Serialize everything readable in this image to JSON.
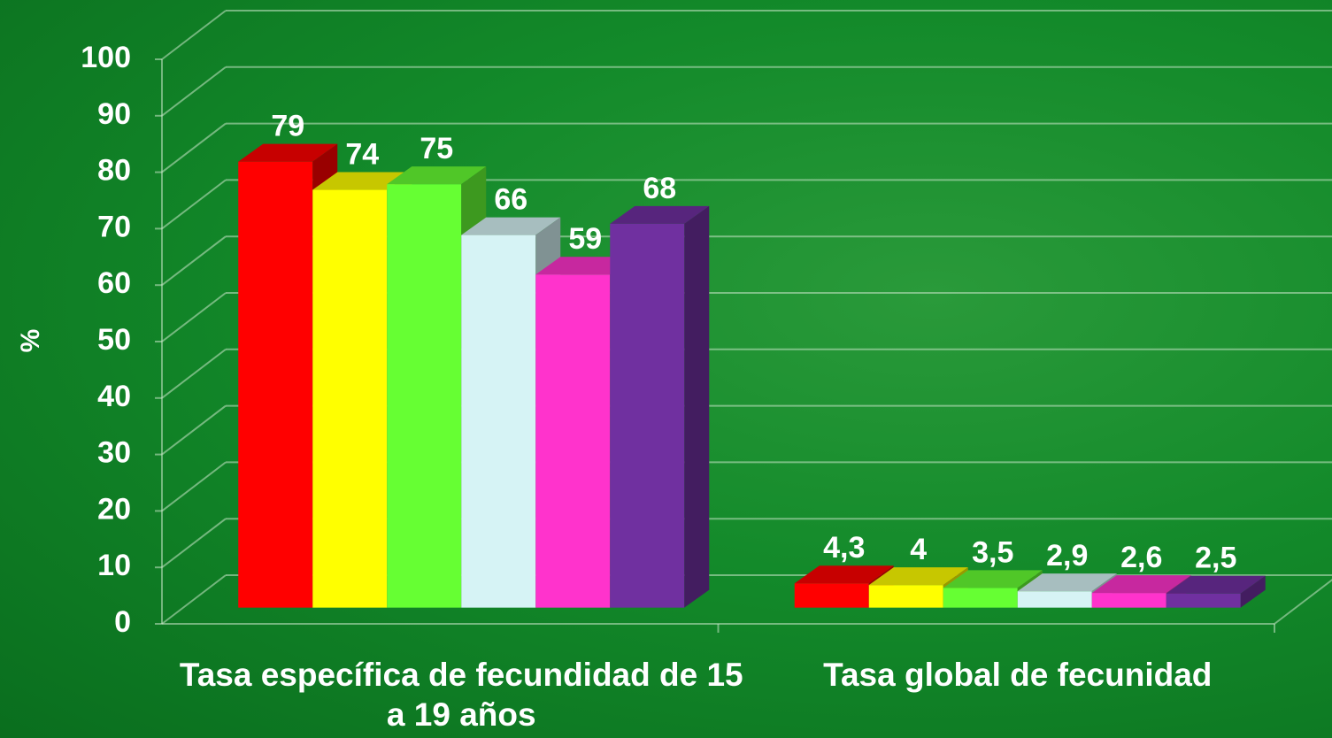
{
  "chart_data": {
    "type": "bar",
    "y_label": "%",
    "categories": [
      "Tasa específica de fecundidad  de 15 a 19 años",
      "Tasa global de fecunidad"
    ],
    "series": [
      {
        "color": "#ff0000",
        "values": [
          79,
          4.3
        ],
        "value_labels": [
          "79",
          "4,3"
        ]
      },
      {
        "color": "#ffff00",
        "values": [
          74,
          4
        ]
      },
      {
        "color": "#66ff33",
        "values": [
          75,
          3.5
        ],
        "value_labels": [
          "75",
          "3,5"
        ]
      },
      {
        "color": "#d6f3f5",
        "values": [
          66,
          2.9
        ],
        "value_labels": [
          "66",
          "2,9"
        ]
      },
      {
        "color": "#ff33cc",
        "values": [
          59,
          2.6
        ],
        "value_labels": [
          "59",
          "2,6"
        ]
      },
      {
        "color": "#7030a0",
        "values": [
          68,
          2.5
        ],
        "value_labels": [
          "68",
          "2,5"
        ]
      }
    ],
    "ylim": [
      0,
      100
    ],
    "yticks": [
      0,
      10,
      20,
      30,
      40,
      50,
      60,
      70,
      80,
      90,
      100
    ],
    "grid": true
  }
}
